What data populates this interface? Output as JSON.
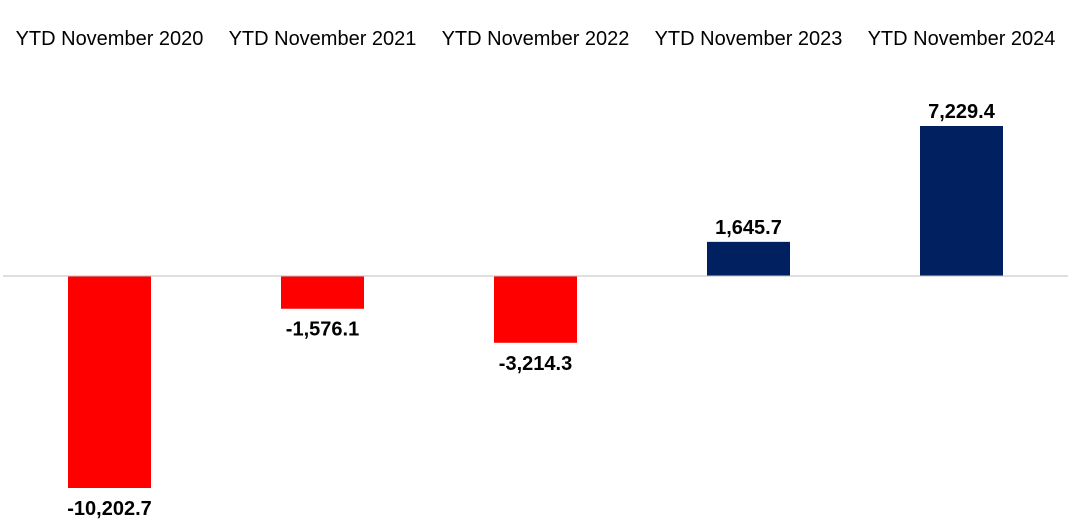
{
  "chart_data": {
    "type": "bar",
    "title": "",
    "xlabel": "",
    "ylabel": "",
    "categories": [
      "YTD November 2020",
      "YTD November 2021",
      "YTD November 2022",
      "YTD November 2023",
      "YTD November 2024"
    ],
    "values": [
      -10202.7,
      -1576.1,
      -3214.3,
      1645.7,
      7229.4
    ],
    "data_labels": [
      "-10,202.7",
      "-1,576.1",
      "-3,214.3",
      "1,645.7",
      "7,229.4"
    ],
    "ylim": [
      -10202.7,
      7229.4
    ],
    "category_label_position": "top",
    "grid": false,
    "legend": "none",
    "colors": {
      "negative": "#ff0000",
      "positive": "#002060",
      "baseline": "#bfbfbf"
    }
  }
}
